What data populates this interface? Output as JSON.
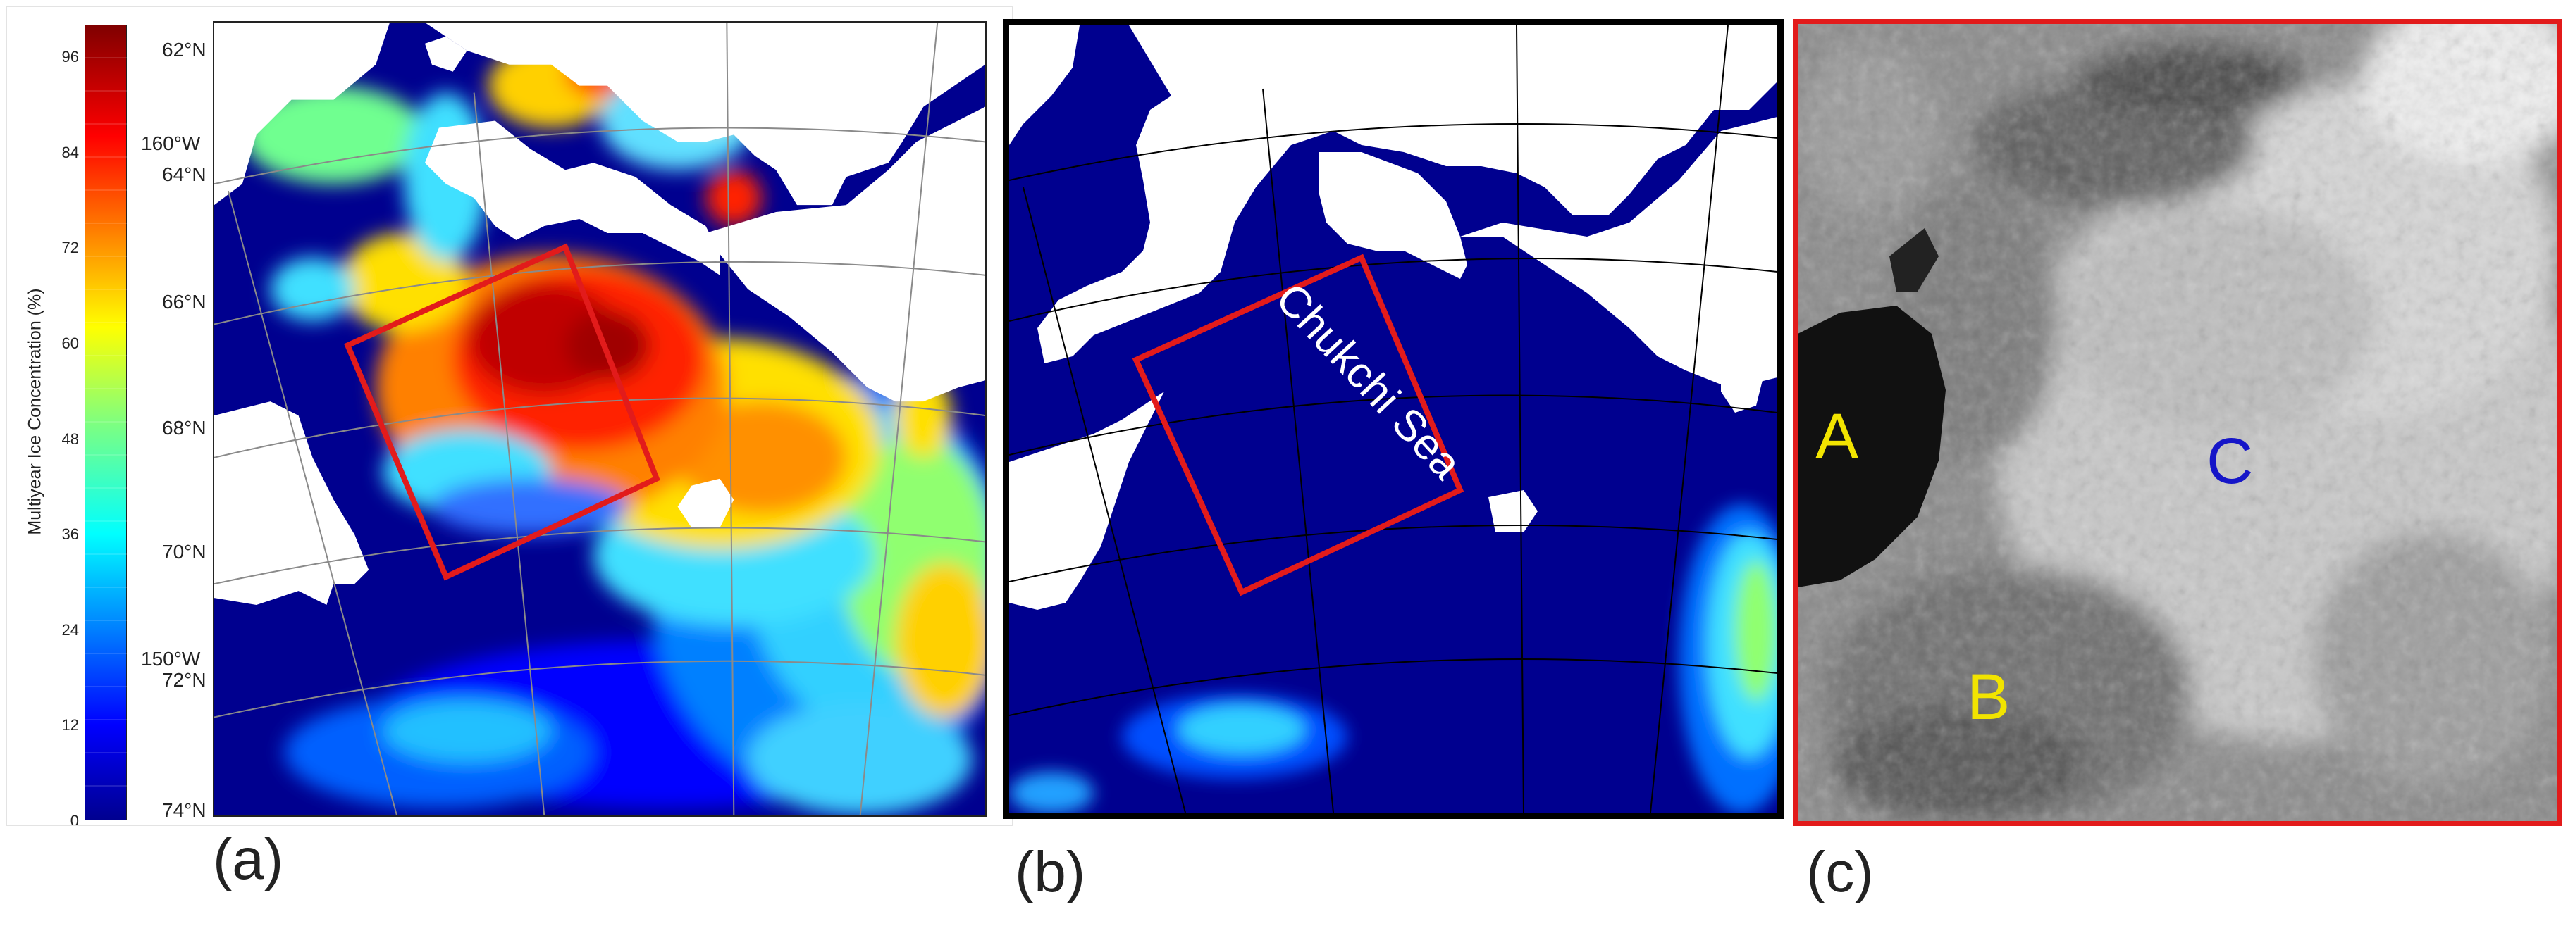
{
  "panels": {
    "a": {
      "label": "(a)",
      "colorbar": {
        "title": "Multiyear Ice Concentration (%)",
        "ticks": [
          "96",
          "84",
          "72",
          "60",
          "48",
          "36",
          "24",
          "12",
          "0"
        ],
        "tick_values": [
          96,
          84,
          72,
          60,
          48,
          36,
          24,
          12,
          0
        ],
        "range": [
          0,
          100
        ],
        "colormap": "jet"
      },
      "lat_labels": [
        "62°N",
        "64°N",
        "66°N",
        "68°N",
        "70°N",
        "72°N",
        "74°N"
      ],
      "lon_labels": [
        "160°W",
        "150°W"
      ]
    },
    "b": {
      "label": "(b)",
      "region_label": "Chukchi Sea"
    },
    "c": {
      "label": "(c)",
      "region_letters": [
        "A",
        "B",
        "C"
      ],
      "letter_colors": {
        "A": "#f2e400",
        "B": "#f2e400",
        "C": "#1515c8"
      }
    }
  },
  "colors": {
    "ocean_open_water": "#00008f",
    "land": "#ffffff",
    "study_box": "#e21b1b",
    "panel_c_frame": "#e21b1b",
    "panel_b_frame": "#000000"
  }
}
